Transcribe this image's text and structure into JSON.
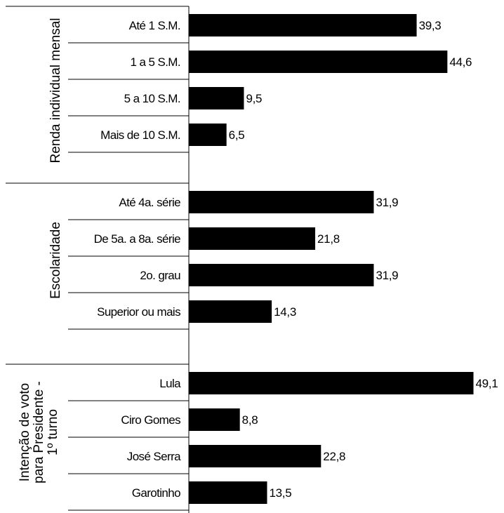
{
  "chart_data": {
    "type": "bar",
    "orientation": "horizontal",
    "unit": "",
    "bar_color": "#000000",
    "xlim": [
      0,
      50
    ],
    "groups": [
      {
        "label_lines": [
          "Renda individual mensal"
        ],
        "categories": [
          "Até 1 S.M.",
          "1 a 5 S.M.",
          "5 a 10 S.M.",
          "Mais de 10 S.M."
        ],
        "values": [
          39.3,
          44.6,
          9.5,
          6.5
        ],
        "value_labels": [
          "39,3",
          "44,6",
          "9,5",
          "6,5"
        ]
      },
      {
        "label_lines": [
          "Escolaridade"
        ],
        "categories": [
          "Até 4a. série",
          "De 5a. a 8a. série",
          "2o. grau",
          "Superior ou mais"
        ],
        "values": [
          31.9,
          21.8,
          31.9,
          14.3
        ],
        "value_labels": [
          "31,9",
          "21,8",
          "31,9",
          "14,3"
        ]
      },
      {
        "label_lines": [
          "Intenção de voto",
          "para Presidente -",
          "1º turno"
        ],
        "categories": [
          "Lula",
          "Ciro Gomes",
          "José Serra",
          "Garotinho"
        ],
        "values": [
          49.1,
          8.8,
          22.8,
          13.5
        ],
        "value_labels": [
          "49,1",
          "8,8",
          "22,8",
          "13,5"
        ]
      }
    ]
  }
}
